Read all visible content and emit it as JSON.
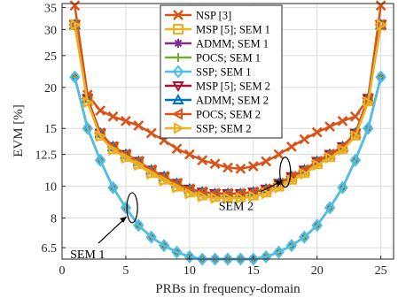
{
  "chart_data": {
    "type": "line",
    "xlabel": "PRBs in frequency-domain",
    "ylabel": "EVM [%]",
    "xlim": [
      0,
      26
    ],
    "ylim": [
      6,
      36
    ],
    "y_scale": "log",
    "grid": true,
    "legend_position": "top-center",
    "x_ticks": [
      0,
      5,
      10,
      15,
      20,
      25
    ],
    "y_ticks": [
      6.5,
      8,
      10,
      12.5,
      15,
      20,
      25,
      30,
      35
    ],
    "x": [
      1,
      2,
      3,
      4,
      5,
      6,
      7,
      8,
      9,
      10,
      11,
      12,
      13,
      14,
      15,
      16,
      17,
      18,
      19,
      20,
      21,
      22,
      23,
      24,
      25
    ],
    "series": [
      {
        "name": "NSP [3]",
        "color": "#D95319",
        "marker": "x",
        "values": [
          35.5,
          19.0,
          17.0,
          16.3,
          15.8,
          15.3,
          14.5,
          13.8,
          13.0,
          12.5,
          12.0,
          11.7,
          11.4,
          11.3,
          11.5,
          11.9,
          12.5,
          13.2,
          13.9,
          14.6,
          15.2,
          15.8,
          16.3,
          18.5,
          35.5
        ]
      },
      {
        "name": "MSP [5]; SEM 1",
        "color": "#EDB120",
        "marker": "square",
        "values": [
          31.0,
          18.2,
          14.3,
          13.0,
          12.3,
          11.7,
          11.0,
          10.5,
          10.0,
          9.6,
          9.4,
          9.3,
          9.3,
          9.3,
          9.4,
          9.6,
          10.0,
          10.5,
          11.0,
          11.7,
          12.3,
          13.0,
          14.3,
          18.2,
          31.0
        ]
      },
      {
        "name": "ADMM; SEM 1",
        "color": "#7E2F8E",
        "marker": "asterisk",
        "values": [
          21.5,
          15.0,
          12.0,
          9.9,
          8.6,
          7.6,
          7.0,
          6.6,
          6.3,
          6.1,
          6.0,
          6.0,
          6.0,
          6.0,
          6.0,
          6.1,
          6.3,
          6.6,
          7.0,
          7.6,
          8.6,
          9.9,
          12.0,
          15.0,
          21.5
        ]
      },
      {
        "name": "POCS; SEM 1",
        "color": "#77AC30",
        "marker": "plus",
        "values": [
          21.5,
          15.0,
          12.0,
          9.9,
          8.6,
          7.6,
          7.0,
          6.6,
          6.3,
          6.1,
          6.0,
          6.0,
          6.0,
          6.0,
          6.0,
          6.1,
          6.3,
          6.6,
          7.0,
          7.6,
          8.6,
          9.9,
          12.0,
          15.0,
          21.5
        ]
      },
      {
        "name": "SSP; SEM 1",
        "color": "#4DBEEE",
        "marker": "diamond",
        "values": [
          21.5,
          15.0,
          12.0,
          9.9,
          8.6,
          7.6,
          7.0,
          6.6,
          6.3,
          6.1,
          6.0,
          6.0,
          6.0,
          6.0,
          6.0,
          6.1,
          6.3,
          6.6,
          7.0,
          7.6,
          8.6,
          9.9,
          12.0,
          15.0,
          21.5
        ]
      },
      {
        "name": "MSP [5]; SEM 2",
        "color": "#A2142F",
        "marker": "triangle-down",
        "values": [
          31.0,
          18.5,
          14.5,
          13.2,
          12.5,
          11.9,
          11.2,
          10.7,
          10.2,
          9.8,
          9.6,
          9.5,
          9.5,
          9.5,
          9.6,
          9.8,
          10.2,
          10.7,
          11.2,
          11.9,
          12.5,
          13.2,
          14.5,
          18.5,
          31.0
        ]
      },
      {
        "name": "ADMM; SEM 2",
        "color": "#0072BD",
        "marker": "triangle-up",
        "values": [
          31.0,
          18.5,
          14.5,
          13.2,
          12.5,
          11.9,
          11.2,
          10.7,
          10.2,
          9.8,
          9.6,
          9.5,
          9.5,
          9.5,
          9.6,
          9.8,
          10.2,
          10.7,
          11.2,
          11.9,
          12.5,
          13.2,
          14.5,
          18.5,
          31.0
        ]
      },
      {
        "name": "POCS; SEM 2",
        "color": "#D95319",
        "marker": "triangle-left",
        "values": [
          31.0,
          18.5,
          14.5,
          13.2,
          12.5,
          11.9,
          11.2,
          10.7,
          10.2,
          9.8,
          9.6,
          9.5,
          9.5,
          9.5,
          9.6,
          9.8,
          10.2,
          10.7,
          11.2,
          11.9,
          12.5,
          13.2,
          14.5,
          18.5,
          31.0
        ]
      },
      {
        "name": "SSP; SEM 2",
        "color": "#EDB120",
        "marker": "triangle-right",
        "values": [
          31.0,
          18.0,
          14.2,
          12.9,
          12.2,
          11.6,
          10.9,
          10.4,
          9.9,
          9.5,
          9.3,
          9.2,
          9.2,
          9.2,
          9.3,
          9.5,
          9.9,
          10.4,
          10.9,
          11.6,
          12.2,
          12.9,
          14.2,
          18.0,
          31.0
        ]
      }
    ],
    "annotations": [
      {
        "text": "SEM 1",
        "target_x": 5.5,
        "target_y": 8.6
      },
      {
        "text": "SEM 2",
        "target_x": 17.5,
        "target_y": 10.5
      }
    ]
  }
}
